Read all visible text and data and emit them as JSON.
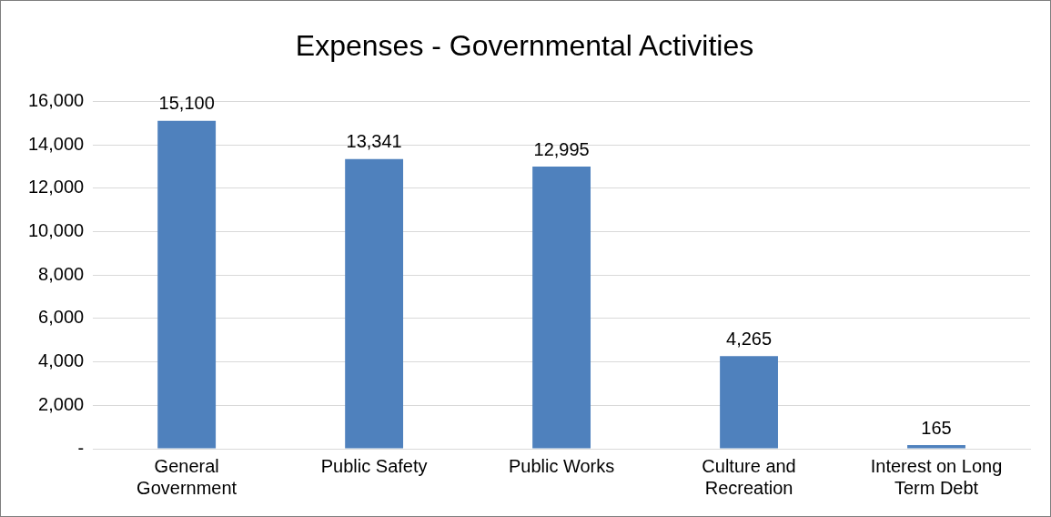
{
  "chart_data": {
    "type": "bar",
    "title": "Expenses - Governmental Activities",
    "categories": [
      "General Government",
      "Public Safety",
      "Public Works",
      "Culture and Recreation",
      "Interest on Long Term Debt"
    ],
    "values": [
      15100,
      13341,
      12995,
      4265,
      165
    ],
    "value_labels": [
      "15,100",
      "13,341",
      "12,995",
      "4,265",
      "165"
    ],
    "color": "#4f81bd",
    "ylim": [
      0,
      16000
    ],
    "yticks": [
      {
        "value": 0,
        "label": "-"
      },
      {
        "value": 2000,
        "label": "2,000"
      },
      {
        "value": 4000,
        "label": "4,000"
      },
      {
        "value": 6000,
        "label": "6,000"
      },
      {
        "value": 8000,
        "label": "8,000"
      },
      {
        "value": 10000,
        "label": "10,000"
      },
      {
        "value": 12000,
        "label": "12,000"
      },
      {
        "value": 14000,
        "label": "14,000"
      },
      {
        "value": 16000,
        "label": "16,000"
      }
    ],
    "grid": "y",
    "legend": false
  }
}
